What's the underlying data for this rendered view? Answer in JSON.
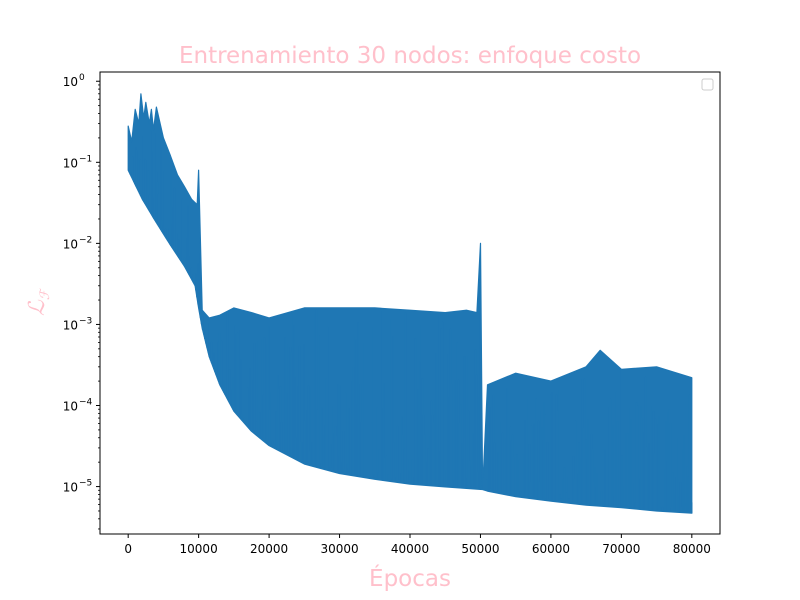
{
  "chart_data": {
    "type": "line",
    "title": "Entrenamiento 30 nodos: enfoque costo",
    "xlabel": "Épocas",
    "ylabel": "ℒ",
    "ylabel_sub": "ℱ",
    "xlim": [
      -4000,
      84000
    ],
    "ylim": [
      2.6e-06,
      1.3
    ],
    "yscale": "log",
    "grid": false,
    "legend": "top-right",
    "x_ticks": [
      0,
      10000,
      20000,
      30000,
      40000,
      50000,
      60000,
      70000,
      80000
    ],
    "x_tick_labels": [
      "0",
      "10000",
      "20000",
      "30000",
      "40000",
      "50000",
      "60000",
      "70000",
      "80000"
    ],
    "y_ticks": [
      {
        "value": 1e-05,
        "base": "10",
        "exp": "−5"
      },
      {
        "value": 0.0001,
        "base": "10",
        "exp": "−4"
      },
      {
        "value": 0.001,
        "base": "10",
        "exp": "−3"
      },
      {
        "value": 0.01,
        "base": "10",
        "exp": "−2"
      },
      {
        "value": 0.1,
        "base": "10",
        "exp": "−1"
      },
      {
        "value": 1,
        "base": "10",
        "exp": "0"
      }
    ],
    "series": [
      {
        "color": "#1f77b4",
        "lower_envelope": {
          "x": [
            0,
            2000,
            4000,
            6000,
            8000,
            9500,
            10000,
            10500,
            11500,
            13000,
            15000,
            17500,
            20000,
            25000,
            30000,
            35000,
            40000,
            45000,
            49500,
            50300,
            51000,
            55000,
            60000,
            65000,
            70000,
            75000,
            80000
          ],
          "y": [
            0.08,
            0.035,
            0.018,
            0.0095,
            0.0052,
            0.003,
            0.0016,
            0.0009,
            0.0004,
            0.00018,
            8.5e-05,
            4.8e-05,
            3.2e-05,
            1.9e-05,
            1.45e-05,
            1.23e-05,
            1.07e-05,
            9.9e-06,
            9.3e-06,
            9.2e-06,
            8.8e-06,
            7.5e-06,
            6.6e-06,
            5.9e-06,
            5.5e-06,
            5e-06,
            4.7e-06
          ]
        },
        "upper_envelope": {
          "x": [
            0,
            500,
            1000,
            1500,
            1800,
            2200,
            2500,
            3000,
            3300,
            3600,
            4000,
            5000,
            6000,
            7000,
            8000,
            9000,
            9800,
            10000,
            10500,
            11500,
            13000,
            15000,
            17500,
            20000,
            25000,
            30000,
            35000,
            40000,
            45000,
            48000,
            49500,
            50000,
            50300,
            51000,
            55000,
            60000,
            65000,
            67000,
            70000,
            75000,
            80000
          ],
          "y": [
            0.28,
            0.18,
            0.45,
            0.3,
            0.7,
            0.35,
            0.55,
            0.3,
            0.45,
            0.25,
            0.48,
            0.2,
            0.12,
            0.07,
            0.05,
            0.035,
            0.03,
            0.08,
            0.0015,
            0.0012,
            0.0013,
            0.0016,
            0.0014,
            0.0012,
            0.0016,
            0.0016,
            0.0016,
            0.0015,
            0.0014,
            0.0015,
            0.0014,
            0.01,
            9.2e-06,
            0.00018,
            0.00025,
            0.0002,
            0.0003,
            0.00048,
            0.00028,
            0.0003,
            0.00022
          ]
        }
      }
    ]
  }
}
